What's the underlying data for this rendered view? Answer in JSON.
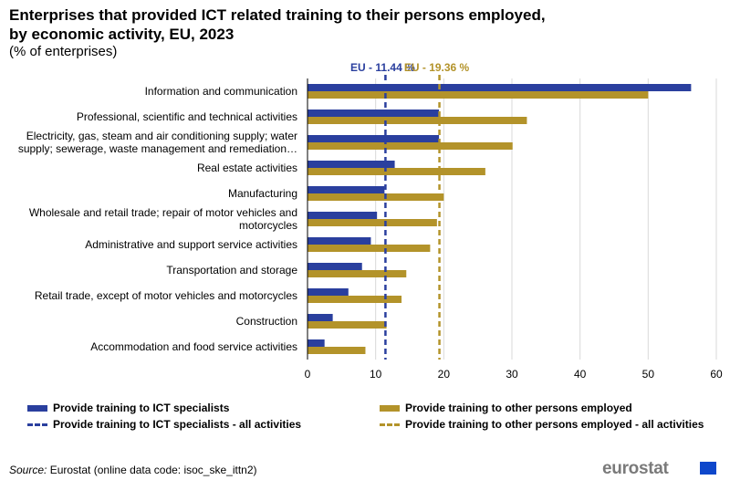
{
  "title": "Enterprises that provided ICT related training to their persons employed, by economic activity, EU, 2023",
  "subtitle": "(% of enterprises)",
  "legend": {
    "series1": "Provide training to ICT specialists",
    "series2": "Provide training to other persons employed",
    "ref1": "Provide training to ICT specialists - all activities",
    "ref2": "Provide training to other persons employed - all activities"
  },
  "source_label": "Source:",
  "source_text": "Eurostat (online data code: isoc_ske_ittn2)",
  "logo_text": "eurostat",
  "colors": {
    "series1": "#2a3f9e",
    "series2": "#b3932a",
    "ref1": "#2a3f9e",
    "ref2": "#b3932a",
    "grid": "#d9d9d9"
  },
  "chart_data": {
    "type": "bar",
    "orientation": "horizontal",
    "categories": [
      "Information and communication",
      "Professional, scientific and technical activities",
      [
        "Electricity, gas, steam and air conditioning supply; water",
        "supply; sewerage, waste management and remediation…"
      ],
      "Real estate activities",
      "Manufacturing",
      [
        "Wholesale and retail trade; repair of motor vehicles and",
        "motorcycles"
      ],
      "Administrative and support service activities",
      "Transportation and storage",
      "Retail trade, except of motor vehicles and motorcycles",
      "Construction",
      "Accommodation and food service activities"
    ],
    "series": [
      {
        "name": "Provide training to ICT specialists",
        "values": [
          56.3,
          19.3,
          19.3,
          12.8,
          11.3,
          10.2,
          9.3,
          8.0,
          6.0,
          3.7,
          2.5
        ]
      },
      {
        "name": "Provide training to other persons employed",
        "values": [
          50.0,
          32.2,
          30.1,
          26.1,
          20.0,
          19.0,
          18.0,
          14.5,
          13.8,
          11.6,
          8.5
        ]
      }
    ],
    "reference_lines": [
      {
        "label": "EU - 11.44 %",
        "value": 11.44
      },
      {
        "label": "EU - 19.36 %",
        "value": 19.36
      }
    ],
    "xlim": [
      0,
      60
    ],
    "xticks": [
      0,
      10,
      20,
      30,
      40,
      50,
      60
    ],
    "grid": true,
    "legend_position": "bottom"
  }
}
